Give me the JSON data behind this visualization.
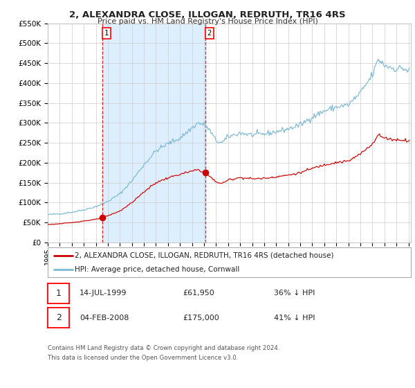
{
  "title": "2, ALEXANDRA CLOSE, ILLOGAN, REDRUTH, TR16 4RS",
  "subtitle": "Price paid vs. HM Land Registry's House Price Index (HPI)",
  "legend_property": "2, ALEXANDRA CLOSE, ILLOGAN, REDRUTH, TR16 4RS (detached house)",
  "legend_hpi": "HPI: Average price, detached house, Cornwall",
  "transaction1_date": "14-JUL-1999",
  "transaction1_price": 61950,
  "transaction1_hpi": "36% ↓ HPI",
  "transaction2_date": "04-FEB-2008",
  "transaction2_price": 175000,
  "transaction2_hpi": "41% ↓ HPI",
  "footer1": "Contains HM Land Registry data © Crown copyright and database right 2024.",
  "footer2": "This data is licensed under the Open Government Licence v3.0.",
  "property_color": "#cc0000",
  "hpi_color": "#7bb8d4",
  "shade_color": "#ddeeff",
  "background_color": "#ffffff",
  "grid_color": "#cccccc",
  "ylim": [
    0,
    550000
  ],
  "ytick_values": [
    0,
    50000,
    100000,
    150000,
    200000,
    250000,
    300000,
    350000,
    400000,
    450000,
    500000,
    550000
  ],
  "ytick_labels": [
    "£0",
    "£50K",
    "£100K",
    "£150K",
    "£200K",
    "£250K",
    "£300K",
    "£350K",
    "£400K",
    "£450K",
    "£500K",
    "£550K"
  ],
  "x_start_year": 1995,
  "x_end_year": 2025,
  "transaction1_x": 1999.54,
  "transaction2_x": 2008.09
}
